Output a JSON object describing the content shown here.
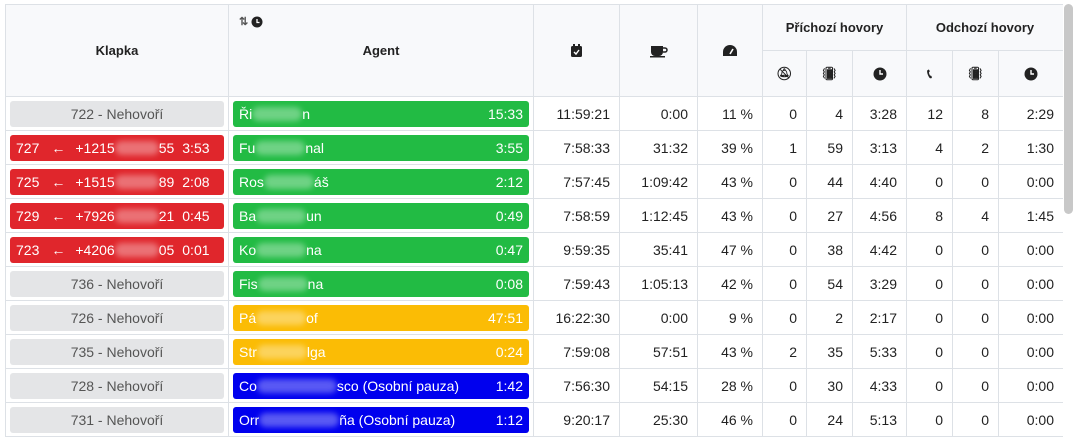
{
  "header": {
    "klapka": "Klapka",
    "agent": "Agent",
    "incoming": "Příchozí hovory",
    "outgoing": "Odchozí hovory"
  },
  "rows": [
    {
      "ext": {
        "text": "722 - Nehovoří"
      },
      "agent": {
        "start": "Ři",
        "end": "n",
        "time": "15:33",
        "color": "#22bb44"
      },
      "login": "11:59:21",
      "pause": "0:00",
      "util": "11 %",
      "in": [
        "0",
        "4",
        "3:28"
      ],
      "out": [
        "12",
        "8",
        "2:29"
      ]
    },
    {
      "ext": {
        "ext": "727",
        "arrow": "←",
        "num_start": "+1215",
        "num_end": "55",
        "time": "3:53"
      },
      "agent": {
        "start": "Fu",
        "end": "nal",
        "time": "3:55",
        "color": "#22bb44"
      },
      "login": "7:58:33",
      "pause": "31:32",
      "util": "39 %",
      "in": [
        "1",
        "59",
        "3:13"
      ],
      "out": [
        "4",
        "2",
        "1:30"
      ]
    },
    {
      "ext": {
        "ext": "725",
        "arrow": "←",
        "num_start": "+1515",
        "num_end": "89",
        "time": "2:08"
      },
      "agent": {
        "start": "Ros",
        "end": "áš",
        "time": "2:12",
        "color": "#22bb44"
      },
      "login": "7:57:45",
      "pause": "1:09:42",
      "util": "43 %",
      "in": [
        "0",
        "44",
        "4:40"
      ],
      "out": [
        "0",
        "0",
        "0:00"
      ]
    },
    {
      "ext": {
        "ext": "729",
        "arrow": "←",
        "num_start": "+7926",
        "num_end": "21",
        "time": "0:45"
      },
      "agent": {
        "start": "Ba",
        "end": "un",
        "time": "0:49",
        "color": "#22bb44"
      },
      "login": "7:58:59",
      "pause": "1:12:45",
      "util": "43 %",
      "in": [
        "0",
        "27",
        "4:56"
      ],
      "out": [
        "8",
        "4",
        "1:45"
      ]
    },
    {
      "ext": {
        "ext": "723",
        "arrow": "←",
        "num_start": "+4206",
        "num_end": "05",
        "time": "0:01"
      },
      "agent": {
        "start": "Ko",
        "end": "na",
        "time": "0:47",
        "color": "#22bb44"
      },
      "login": "9:59:35",
      "pause": "35:41",
      "util": "47 %",
      "in": [
        "0",
        "38",
        "4:42"
      ],
      "out": [
        "0",
        "0",
        "0:00"
      ]
    },
    {
      "ext": {
        "text": "736 - Nehovoří"
      },
      "agent": {
        "start": "Fis",
        "end": "na",
        "time": "0:08",
        "color": "#22bb44"
      },
      "login": "7:59:43",
      "pause": "1:05:13",
      "util": "42 %",
      "in": [
        "0",
        "54",
        "3:29"
      ],
      "out": [
        "0",
        "0",
        "0:00"
      ]
    },
    {
      "ext": {
        "text": "726 - Nehovoří"
      },
      "agent": {
        "start": "Pá",
        "end": "of",
        "time": "47:51",
        "color": "#fbbc05"
      },
      "login": "16:22:30",
      "pause": "0:00",
      "util": "9 %",
      "in": [
        "0",
        "2",
        "2:17"
      ],
      "out": [
        "0",
        "0",
        "0:00"
      ]
    },
    {
      "ext": {
        "text": "735 - Nehovoří"
      },
      "agent": {
        "start": "Str",
        "end": "lga",
        "time": "0:24",
        "color": "#fbbc05"
      },
      "login": "7:59:08",
      "pause": "57:51",
      "util": "43 %",
      "in": [
        "2",
        "35",
        "5:33"
      ],
      "out": [
        "0",
        "0",
        "0:00"
      ]
    },
    {
      "ext": {
        "text": "728 - Nehovoří"
      },
      "agent": {
        "start": "Co",
        "end": "sco (Osobní pauza)",
        "time": "1:42",
        "color": "#0000ee"
      },
      "login": "7:56:30",
      "pause": "54:15",
      "util": "28 %",
      "in": [
        "0",
        "30",
        "4:33"
      ],
      "out": [
        "0",
        "0",
        "0:00"
      ]
    },
    {
      "ext": {
        "text": "731 - Nehovoří"
      },
      "agent": {
        "start": "Orr",
        "end": "ña (Osobní pauza)",
        "time": "1:12",
        "color": "#0000ee"
      },
      "login": "9:20:17",
      "pause": "25:30",
      "util": "46 %",
      "in": [
        "0",
        "24",
        "5:13"
      ],
      "out": [
        "0",
        "0",
        "0:00"
      ]
    }
  ]
}
